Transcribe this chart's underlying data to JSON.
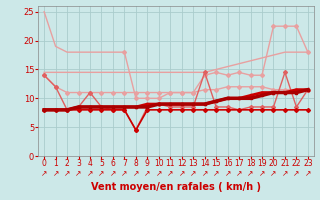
{
  "bg_color": "#cce8e8",
  "grid_color": "#aacccc",
  "xlabel": "Vent moyen/en rafales ( km/h )",
  "xlabel_color": "#cc0000",
  "xlabel_fontsize": 7,
  "tick_color": "#cc0000",
  "xlim": [
    -0.5,
    23.5
  ],
  "ylim": [
    0,
    26
  ],
  "yticks": [
    0,
    5,
    10,
    15,
    20,
    25
  ],
  "xticks": [
    0,
    1,
    2,
    3,
    4,
    5,
    6,
    7,
    8,
    9,
    10,
    11,
    12,
    13,
    14,
    15,
    16,
    17,
    18,
    19,
    20,
    21,
    22,
    23
  ],
  "series": [
    {
      "x": [
        0,
        1,
        2,
        3,
        4,
        5,
        6,
        7
      ],
      "y": [
        25,
        19,
        18,
        18,
        18,
        18,
        18,
        18
      ],
      "color": "#e8a0a0",
      "lw": 1.0,
      "marker": null,
      "markersize": 2,
      "zorder": 2
    },
    {
      "x": [
        7,
        8,
        9,
        10,
        11,
        12,
        13,
        14,
        15,
        16,
        17,
        18,
        19,
        20,
        21,
        22,
        23
      ],
      "y": [
        18,
        10,
        10,
        10,
        11,
        11,
        11,
        14,
        14.5,
        14,
        14.5,
        14,
        14,
        22.5,
        22.5,
        22.5,
        18
      ],
      "color": "#e8a0a0",
      "lw": 1.0,
      "marker": "D",
      "markersize": 2,
      "zorder": 2
    },
    {
      "x": [
        0,
        1,
        2,
        3,
        4,
        5,
        6,
        7,
        8,
        9,
        10,
        11,
        12,
        13,
        14,
        15,
        16,
        17,
        18,
        19,
        20,
        21,
        22,
        23
      ],
      "y": [
        14.5,
        14.5,
        14.5,
        14.5,
        14.5,
        14.5,
        14.5,
        14.5,
        14.5,
        14.5,
        14.5,
        14.5,
        14.5,
        14.5,
        14.5,
        15,
        15.5,
        16,
        16.5,
        17,
        17.5,
        18,
        18,
        18
      ],
      "color": "#e8a0a0",
      "lw": 1.0,
      "marker": null,
      "markersize": 2,
      "zorder": 2
    },
    {
      "x": [
        0,
        1,
        2,
        3,
        4,
        5,
        6,
        7,
        8,
        9,
        10,
        11,
        12,
        13,
        14,
        15,
        16,
        17,
        18,
        19,
        20,
        21,
        22,
        23
      ],
      "y": [
        14,
        12,
        11,
        11,
        11,
        11,
        11,
        11,
        11,
        11,
        11,
        11,
        11,
        11,
        11.5,
        11.5,
        12,
        12,
        12,
        12,
        11.5,
        11.5,
        11.5,
        11.5
      ],
      "color": "#e8a0a0",
      "lw": 1.0,
      "marker": "D",
      "markersize": 2,
      "zorder": 3
    },
    {
      "x": [
        0,
        1,
        2,
        3,
        4,
        5,
        6,
        7,
        8,
        9,
        10,
        11,
        12,
        13,
        14,
        15,
        16,
        17,
        18,
        19,
        20,
        21,
        22,
        23
      ],
      "y": [
        14,
        12,
        8,
        8.5,
        11,
        8.5,
        8,
        8,
        4.5,
        8.5,
        9,
        8.5,
        8.5,
        8.5,
        14.5,
        8.5,
        8.5,
        8,
        8.5,
        8.5,
        8.5,
        14.5,
        8.5,
        11.5
      ],
      "color": "#e06060",
      "lw": 1.0,
      "marker": "D",
      "markersize": 2,
      "zorder": 4
    },
    {
      "x": [
        0,
        1,
        2,
        3,
        4,
        5,
        6,
        7,
        8,
        9,
        10,
        11,
        12,
        13,
        14,
        15,
        16,
        17,
        18,
        19,
        20,
        21,
        22,
        23
      ],
      "y": [
        8,
        8,
        8,
        8,
        8,
        8,
        8,
        8,
        4.5,
        8,
        8,
        8,
        8,
        8,
        8,
        8,
        8,
        8,
        8,
        8,
        8,
        8,
        8,
        8
      ],
      "color": "#cc0000",
      "lw": 1.2,
      "marker": "D",
      "markersize": 2,
      "zorder": 5
    },
    {
      "x": [
        0,
        1,
        2,
        3,
        4,
        5,
        6,
        7,
        8,
        9,
        10,
        11,
        12,
        13,
        14,
        15,
        16,
        17,
        18,
        19,
        20,
        21,
        22,
        23
      ],
      "y": [
        8,
        8,
        8,
        8.5,
        8.5,
        8.5,
        8.5,
        8.5,
        8.5,
        9,
        9,
        9,
        9,
        9,
        9,
        9.5,
        10,
        10,
        10.5,
        11,
        11,
        11,
        11.5,
        11.5
      ],
      "color": "#cc0000",
      "lw": 2.0,
      "marker": "s",
      "markersize": 2,
      "zorder": 6
    },
    {
      "x": [
        0,
        1,
        2,
        3,
        4,
        5,
        6,
        7,
        8,
        9,
        10,
        11,
        12,
        13,
        14,
        15,
        16,
        17,
        18,
        19,
        20,
        21,
        22,
        23
      ],
      "y": [
        8,
        8,
        8,
        8.5,
        8.5,
        8.5,
        8.5,
        8.5,
        8.5,
        8.5,
        9,
        9,
        9,
        9,
        9,
        9.5,
        10,
        10,
        10,
        10.5,
        11,
        11,
        11,
        11.5
      ],
      "color": "#aa0000",
      "lw": 2.5,
      "marker": "s",
      "markersize": 2,
      "zorder": 7
    }
  ],
  "arrow_symbol": "↗",
  "arrow_color": "#cc0000",
  "arrow_fontsize": 5.5
}
